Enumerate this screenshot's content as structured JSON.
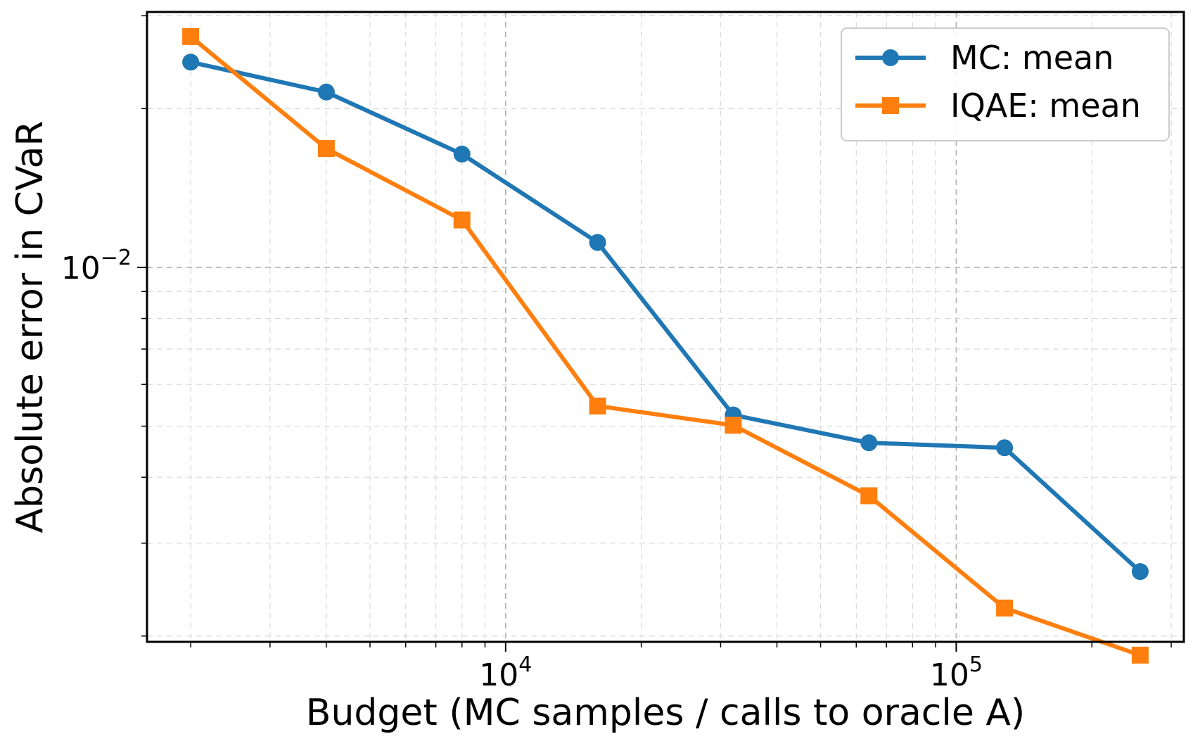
{
  "chart_data": {
    "type": "line",
    "title": "",
    "xlabel": "Budget (MC samples / calls to oracle A)",
    "ylabel": "Absolute error in CVaR",
    "xscale": "log",
    "yscale": "log",
    "xlim": [
      1600,
      320000
    ],
    "ylim": [
      0.00195,
      0.0305
    ],
    "grid": true,
    "legend_position": "top-right",
    "x_tick_labels": [
      {
        "value": 10000,
        "base": "10",
        "exp": "4"
      },
      {
        "value": 100000,
        "base": "10",
        "exp": "5"
      }
    ],
    "y_tick_labels": [
      {
        "value": 0.01,
        "base": "10",
        "exp": "−2"
      }
    ],
    "x": [
      2000,
      4000,
      8000,
      16000,
      32000,
      64000,
      128000,
      256000
    ],
    "series": [
      {
        "name": "MC: mean",
        "color": "#1f77b4",
        "marker": "circle",
        "values": [
          0.0245,
          0.0215,
          0.0164,
          0.01115,
          0.00525,
          0.00465,
          0.00455,
          0.00265
        ]
      },
      {
        "name": "IQAE: mean",
        "color": "#ff7f0e",
        "marker": "square",
        "values": [
          0.0274,
          0.0168,
          0.0123,
          0.00546,
          0.00502,
          0.00369,
          0.00226,
          0.00184
        ]
      }
    ]
  }
}
